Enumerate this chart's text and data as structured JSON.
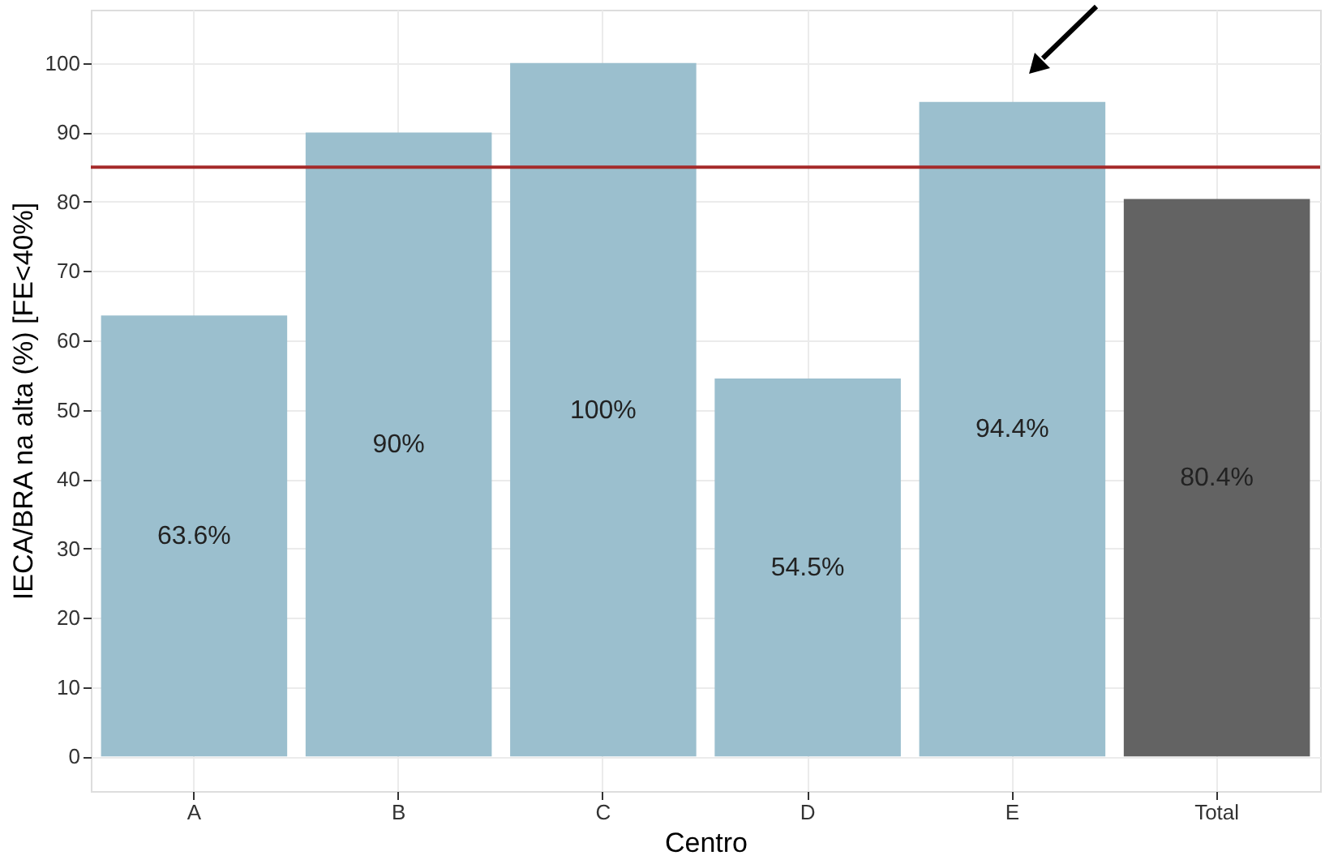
{
  "chart_data": {
    "type": "bar",
    "xlabel": "Centro",
    "ylabel": "IECA/BRA na alta (%) [FE<40%]",
    "categories": [
      "A",
      "B",
      "C",
      "D",
      "E",
      "Total"
    ],
    "values": [
      63.6,
      90,
      100,
      54.5,
      94.4,
      80.4
    ],
    "colors": [
      "#9bbfce",
      "#9bbfce",
      "#9bbfce",
      "#9bbfce",
      "#9bbfce",
      "#636363"
    ],
    "value_labels": [
      "63.6%",
      "90%",
      "100%",
      "54.5%",
      "94.4%",
      "80.4%"
    ],
    "ylim": [
      -5,
      107.7
    ],
    "yticks": [
      0,
      10,
      20,
      30,
      40,
      50,
      60,
      70,
      80,
      90,
      100
    ],
    "ref_lines": [
      {
        "axis": "y",
        "value": 85,
        "color": "#a52a2a"
      }
    ],
    "grid": true
  }
}
